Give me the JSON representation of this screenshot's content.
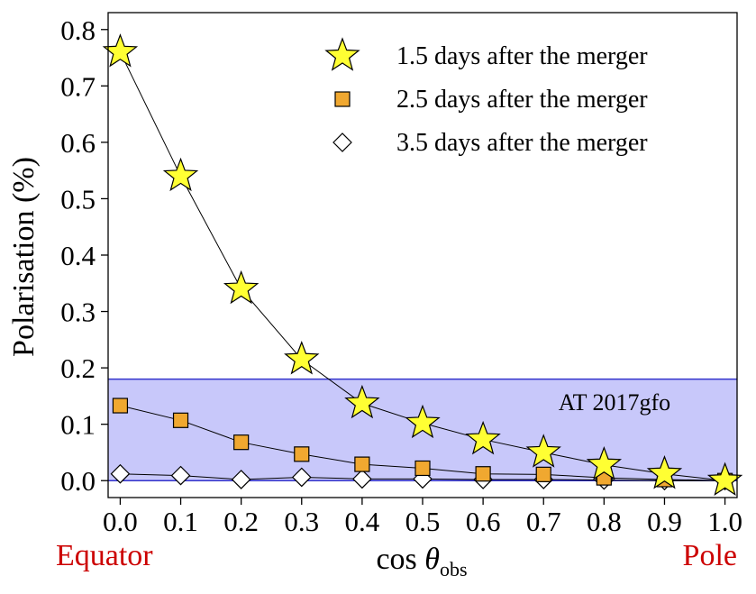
{
  "chart_data": {
    "type": "scatter",
    "xlabel": "cos θobs",
    "xlabel_main": "cos ",
    "xlabel_theta": "θ",
    "xlabel_sub": "obs",
    "ylabel": "Polarisation (%)",
    "xlim": [
      -0.02,
      1.02
    ],
    "ylim": [
      -0.03,
      0.83
    ],
    "xticks": [
      0.0,
      0.1,
      0.2,
      0.3,
      0.4,
      0.5,
      0.6,
      0.7,
      0.8,
      0.9,
      1.0
    ],
    "yticks": [
      0.0,
      0.1,
      0.2,
      0.3,
      0.4,
      0.5,
      0.6,
      0.7,
      0.8
    ],
    "grid": false,
    "legend_position": "top-right",
    "x": [
      0.0,
      0.1,
      0.2,
      0.3,
      0.4,
      0.5,
      0.6,
      0.7,
      0.8,
      0.9,
      1.0
    ],
    "series": [
      {
        "name": "1.5 days after the merger",
        "marker": "star",
        "color": "#ffff33",
        "values": [
          0.76,
          0.54,
          0.34,
          0.215,
          0.137,
          0.102,
          0.073,
          0.05,
          0.028,
          0.012,
          0.0
        ]
      },
      {
        "name": "2.5 days after the merger",
        "marker": "square",
        "color": "#f0a830",
        "values": [
          0.133,
          0.107,
          0.068,
          0.047,
          0.029,
          0.022,
          0.012,
          0.011,
          0.005,
          0.002,
          0.0
        ]
      },
      {
        "name": "3.5 days after the merger",
        "marker": "diamond",
        "color": "#ffffff",
        "values": [
          0.012,
          0.009,
          0.002,
          0.006,
          0.003,
          0.003,
          0.002,
          0.002,
          0.001,
          0.0,
          0.0
        ]
      }
    ],
    "band": {
      "label": "AT 2017gfo",
      "y_from": 0.0,
      "y_to": 0.18,
      "fill": "#c8c8fa",
      "edge": "#3333cc"
    },
    "annotations": {
      "left": "Equator",
      "right": "Pole",
      "color": "#cc0000"
    }
  }
}
